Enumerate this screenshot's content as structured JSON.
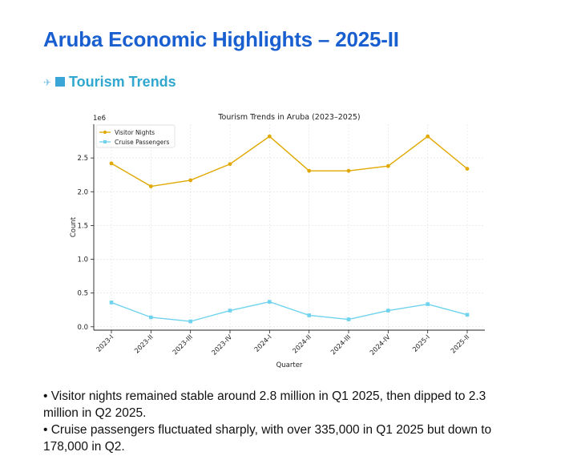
{
  "page": {
    "title": "Aruba Economic Highlights – 2025-II",
    "section_title": "Tourism Trends",
    "section_icon": "airplane-and-square-icon",
    "bullets": [
      "Visitor nights remained stable around 2.8 million in Q1 2025, then dipped to 2.3 million in Q2 2025.",
      "Cruise passengers fluctuated sharply, with over 335,000 in Q1 2025 but down to 178,000 in Q2."
    ]
  },
  "colors": {
    "title": "#1a5fd0",
    "section": "#2fa7cf",
    "visitor_nights": "#e0a800",
    "cruise_passengers": "#6fd3ee"
  },
  "chart_data": {
    "type": "line",
    "title": "Tourism Trends in Aruba (2023–2025)",
    "xlabel": "Quarter",
    "ylabel": "Count",
    "y_offset_label": "1e6",
    "categories": [
      "2023-I",
      "2023-II",
      "2023-III",
      "2023-IV",
      "2024-I",
      "2024-II",
      "2024-III",
      "2024-IV",
      "2025-I",
      "2025-II"
    ],
    "series": [
      {
        "name": "Visitor Nights",
        "color": "#e0a800",
        "marker": "circle",
        "values": [
          2420000,
          2080000,
          2170000,
          2410000,
          2820000,
          2310000,
          2310000,
          2380000,
          2820000,
          2340000
        ]
      },
      {
        "name": "Cruise Passengers",
        "color": "#6fd3ee",
        "marker": "square",
        "values": [
          360000,
          140000,
          80000,
          240000,
          370000,
          170000,
          110000,
          240000,
          335000,
          178000
        ]
      }
    ],
    "ylim": [
      -50000,
      3000000
    ],
    "yticks": [
      0,
      500000,
      1000000,
      1500000,
      2000000,
      2500000
    ],
    "ytick_labels": [
      "0.0",
      "0.5",
      "1.0",
      "1.5",
      "2.0",
      "2.5"
    ],
    "grid": true,
    "legend": "top-left"
  }
}
